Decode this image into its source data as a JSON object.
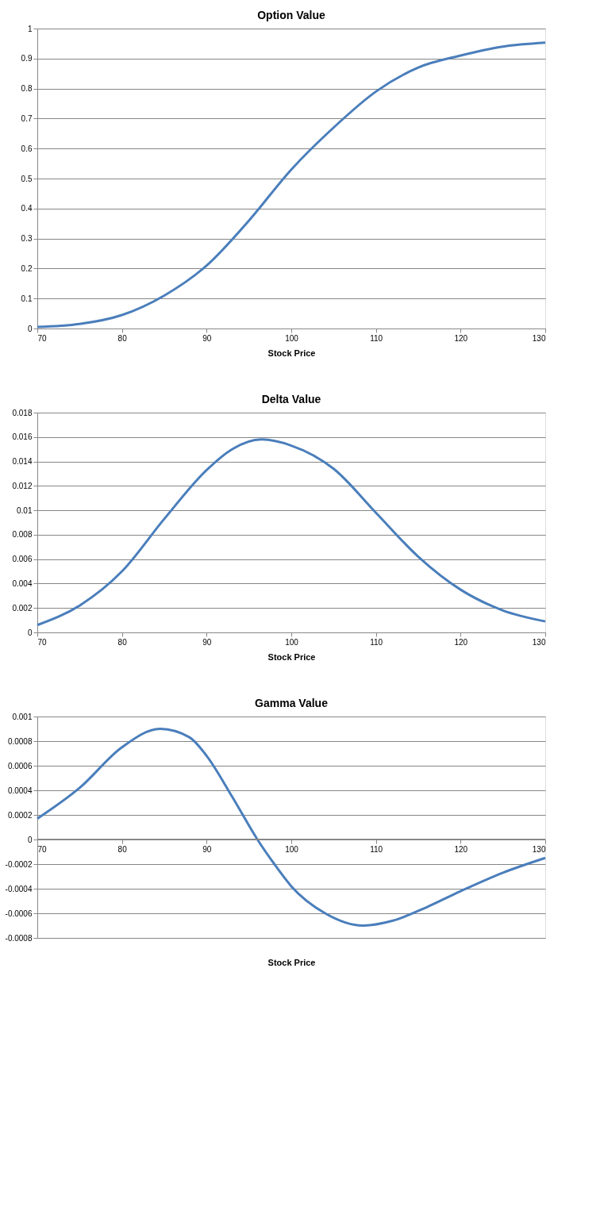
{
  "chart_data": [
    {
      "type": "line",
      "title": "Option Value",
      "xlabel": "Stock Price",
      "color": "#4a7ebb",
      "grid": "y",
      "x": [
        70,
        75,
        80,
        85,
        90,
        95,
        100,
        105,
        110,
        115,
        120,
        125,
        130
      ],
      "values": [
        0.005,
        0.015,
        0.045,
        0.11,
        0.21,
        0.36,
        0.53,
        0.67,
        0.79,
        0.87,
        0.91,
        0.94,
        0.953
      ],
      "xlim": [
        70,
        130
      ],
      "xticks": [
        70,
        80,
        90,
        100,
        110,
        120,
        130
      ],
      "ylim": [
        0,
        1
      ],
      "yticks": [
        0,
        0.1,
        0.2,
        0.3,
        0.4,
        0.5,
        0.6,
        0.7,
        0.8,
        0.9,
        1
      ]
    },
    {
      "type": "line",
      "title": "Delta Value",
      "xlabel": "Stock Price",
      "color": "#4a7ebb",
      "grid": "y",
      "x": [
        70,
        75,
        80,
        85,
        90,
        93,
        96.5,
        100,
        105,
        110,
        115,
        120,
        125,
        130
      ],
      "values": [
        0.0006,
        0.0022,
        0.005,
        0.0093,
        0.0133,
        0.015,
        0.0158,
        0.0153,
        0.0134,
        0.0098,
        0.0062,
        0.0035,
        0.0018,
        0.0009
      ],
      "xlim": [
        70,
        130
      ],
      "xticks": [
        70,
        80,
        90,
        100,
        110,
        120,
        130
      ],
      "ylim": [
        0,
        0.018
      ],
      "yticks": [
        0,
        0.002,
        0.004,
        0.006,
        0.008,
        0.01,
        0.012,
        0.014,
        0.016,
        0.018
      ]
    },
    {
      "type": "line",
      "title": "Gamma Value",
      "xlabel": "Stock Price",
      "color": "#4a7ebb",
      "grid": "y",
      "x": [
        70,
        75,
        80,
        84.5,
        88,
        90,
        93,
        96,
        98,
        100,
        104,
        108.5,
        112,
        116,
        120,
        125,
        130
      ],
      "values": [
        0.00017,
        0.00042,
        0.00075,
        0.0009,
        0.00083,
        0.00068,
        0.00035,
        0,
        -0.0002,
        -0.00038,
        -0.0006,
        -0.0007,
        -0.00066,
        -0.00055,
        -0.00042,
        -0.00027,
        -0.00015
      ],
      "xlim": [
        70,
        130
      ],
      "xticks": [
        70,
        80,
        90,
        100,
        110,
        120,
        130
      ],
      "ylim": [
        -0.0008,
        0.001
      ],
      "yticks": [
        -0.0008,
        -0.0006,
        -0.0004,
        -0.0002,
        0,
        0.0002,
        0.0004,
        0.0006,
        0.0008,
        0.001
      ]
    }
  ]
}
